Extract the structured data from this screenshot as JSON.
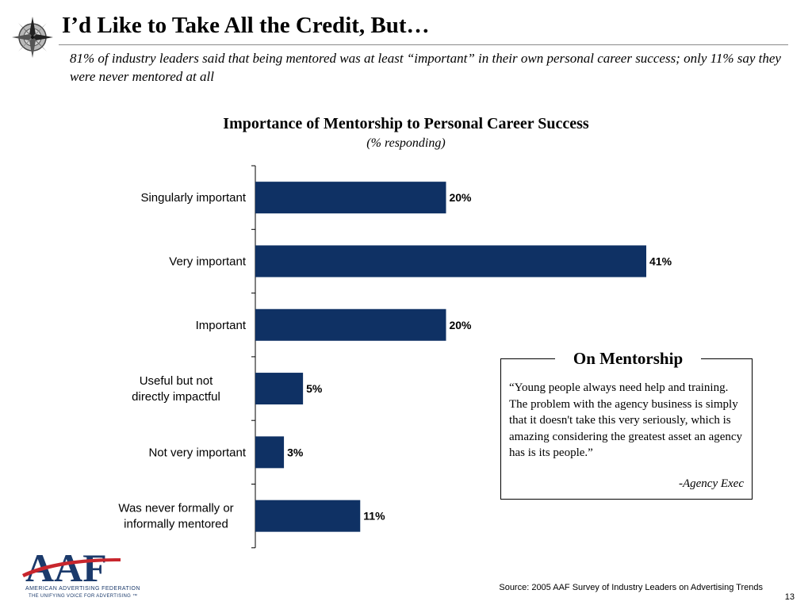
{
  "slide": {
    "title": "I’d Like to Take All the Credit, But…",
    "subtitle": "81% of  industry leaders said that being mentored was at least “important” in their own personal career success; only 11% say they were never mentored at all",
    "page_number": "13",
    "source": "Source: 2005 AAF Survey of Industry Leaders on Advertising Trends",
    "logo": {
      "mark": "AAF",
      "name": "American Advertising Federation",
      "tagline": "The Unifying Voice For Advertising ™"
    }
  },
  "callout": {
    "title": "On Mentorship",
    "quote": "“Young people always need help and training. The problem with the agency business is simply that it doesn't take this very seriously, which is amazing considering the greatest asset an agency has is its people.”",
    "attribution": "-Agency Exec"
  },
  "colors": {
    "bar": "#0f3164",
    "logo_blue": "#1b3a6b",
    "logo_red": "#c8262d"
  },
  "chart_data": {
    "type": "bar",
    "orientation": "horizontal",
    "title": "Importance of Mentorship to Personal Career Success",
    "subtitle": "(% responding)",
    "categories": [
      "Singularly important",
      "Very important",
      "Important",
      "Useful but not directly impactful",
      "Not very important",
      "Was never formally or informally mentored"
    ],
    "values": [
      20,
      41,
      20,
      5,
      3,
      11
    ],
    "data_labels": [
      "20%",
      "41%",
      "20%",
      "5%",
      "3%",
      "11%"
    ],
    "unit": "%",
    "xlim": [
      0,
      41
    ],
    "grid": false,
    "legend": "none"
  }
}
